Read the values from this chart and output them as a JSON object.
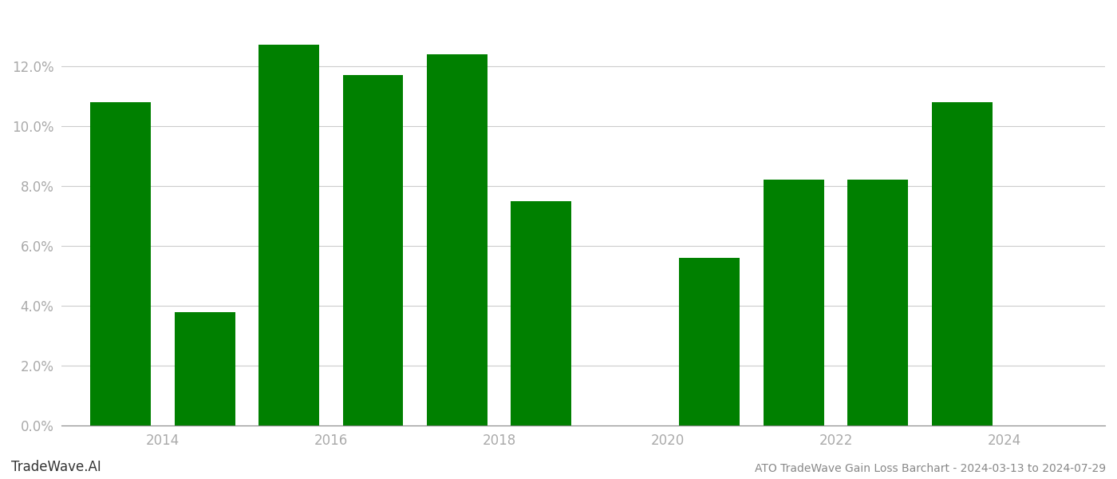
{
  "years": [
    2013.5,
    2014.5,
    2015.5,
    2016.5,
    2017.5,
    2018.5,
    2020.5,
    2021.5,
    2022.5,
    2023.5
  ],
  "values": [
    0.108,
    0.038,
    0.127,
    0.117,
    0.124,
    0.075,
    0.056,
    0.082,
    0.082,
    0.108
  ],
  "bar_color": "#008000",
  "ylabel_color": "#aaaaaa",
  "xlabel_color": "#aaaaaa",
  "grid_color": "#cccccc",
  "background_color": "#ffffff",
  "ytick_values": [
    0.0,
    0.02,
    0.04,
    0.06,
    0.08,
    0.1,
    0.12
  ],
  "xtick_values": [
    2014,
    2016,
    2018,
    2020,
    2022,
    2024
  ],
  "ylim": [
    0.0,
    0.138
  ],
  "xlim": [
    2012.8,
    2025.2
  ],
  "footer_left": "TradeWave.AI",
  "footer_right": "ATO TradeWave Gain Loss Barchart - 2024-03-13 to 2024-07-29",
  "bar_width": 0.72,
  "figsize": [
    14.0,
    6.0
  ],
  "dpi": 100
}
